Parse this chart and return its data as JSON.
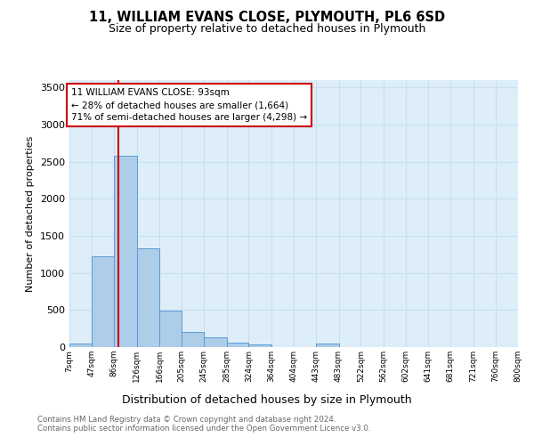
{
  "title": "11, WILLIAM EVANS CLOSE, PLYMOUTH, PL6 6SD",
  "subtitle": "Size of property relative to detached houses in Plymouth",
  "xlabel": "Distribution of detached houses by size in Plymouth",
  "ylabel": "Number of detached properties",
  "footnote1": "Contains HM Land Registry data © Crown copyright and database right 2024.",
  "footnote2": "Contains public sector information licensed under the Open Government Licence v3.0.",
  "annotation_line1": "11 WILLIAM EVANS CLOSE: 93sqm",
  "annotation_line2": "← 28% of detached houses are smaller (1,664)",
  "annotation_line3": "71% of semi-detached houses are larger (4,298) →",
  "vline_value": 93,
  "bar_edges": [
    7,
    47,
    86,
    126,
    166,
    205,
    245,
    285,
    324,
    364,
    404,
    443,
    483,
    522,
    562,
    602,
    641,
    681,
    721,
    760,
    800
  ],
  "bar_heights": [
    50,
    1220,
    2580,
    1330,
    490,
    210,
    130,
    60,
    40,
    0,
    0,
    50,
    0,
    0,
    0,
    0,
    0,
    0,
    0,
    0
  ],
  "bar_color": "#aecde8",
  "bar_edge_color": "#5b9bd5",
  "vline_color": "#cc0000",
  "annotation_box_edgecolor": "#cc0000",
  "axes_facecolor": "#ddeef8",
  "grid_color": "#c8dff0",
  "ylim_max": 3600,
  "yticks": [
    0,
    500,
    1000,
    1500,
    2000,
    2500,
    3000,
    3500
  ],
  "tick_labels": [
    "7sqm",
    "47sqm",
    "86sqm",
    "126sqm",
    "166sqm",
    "205sqm",
    "245sqm",
    "285sqm",
    "324sqm",
    "364sqm",
    "404sqm",
    "443sqm",
    "483sqm",
    "522sqm",
    "562sqm",
    "602sqm",
    "641sqm",
    "681sqm",
    "721sqm",
    "760sqm",
    "800sqm"
  ]
}
